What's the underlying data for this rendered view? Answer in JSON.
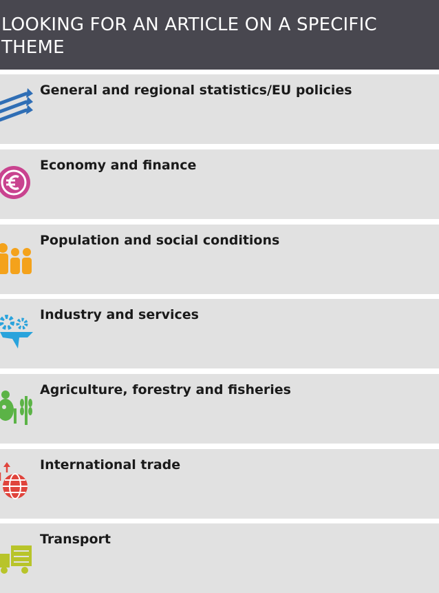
{
  "header": {
    "title": "LOOKING FOR AN ARTICLE ON A SPECIFIC THEME"
  },
  "themes": [
    {
      "label": "General and regional statistics/EU policies"
    },
    {
      "label": "Economy and finance"
    },
    {
      "label": "Population and social conditions"
    },
    {
      "label": "Industry and services"
    },
    {
      "label": "Agriculture, forestry and fisheries"
    },
    {
      "label": "International trade"
    },
    {
      "label": "Transport"
    }
  ]
}
